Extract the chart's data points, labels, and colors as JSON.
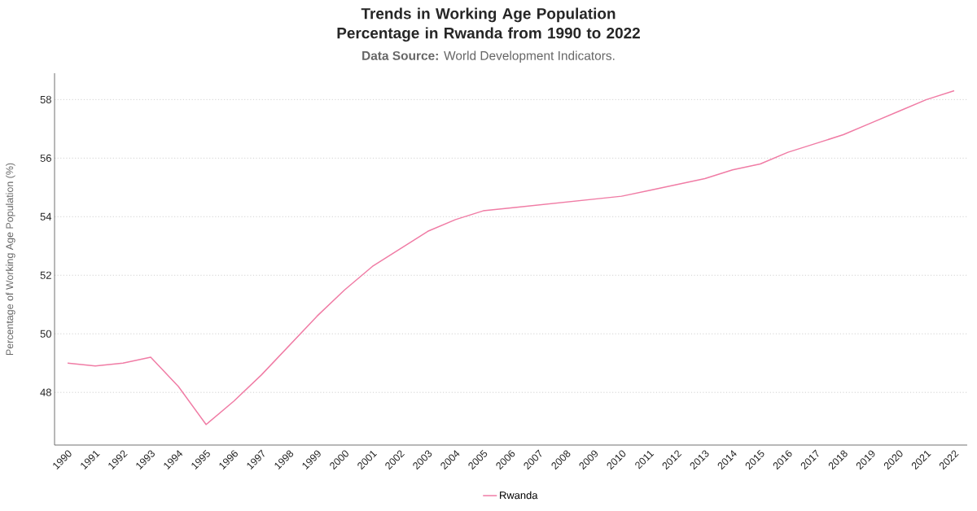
{
  "chart_data": {
    "type": "line",
    "title": "Trends in Working Age Population Percentage in Rwanda from 1990 to 2022",
    "subtitle": "**Data Source:** World Development Indicators.",
    "ylabel": "Percentage of Working Age Population (%)",
    "categories": [
      "1990",
      "1991",
      "1992",
      "1993",
      "1994",
      "1995",
      "1996",
      "1997",
      "1998",
      "1999",
      "2000",
      "2001",
      "2002",
      "2003",
      "2004",
      "2005",
      "2006",
      "2007",
      "2008",
      "2009",
      "2010",
      "2011",
      "2012",
      "2013",
      "2014",
      "2015",
      "2016",
      "2017",
      "2018",
      "2019",
      "2020",
      "2021",
      "2022"
    ],
    "series": [
      {
        "name": "Rwanda",
        "color": "#f07ca5",
        "values": [
          49.0,
          48.9,
          49.0,
          49.2,
          48.2,
          46.9,
          47.7,
          48.6,
          49.6,
          50.6,
          51.5,
          52.3,
          52.9,
          53.5,
          53.9,
          54.2,
          54.3,
          54.4,
          54.5,
          54.6,
          54.7,
          54.9,
          55.1,
          55.3,
          55.6,
          55.8,
          56.2,
          56.5,
          56.8,
          57.2,
          57.6,
          58.0,
          58.3
        ]
      }
    ],
    "ylim": [
      46.2,
      58.9
    ],
    "yticks": [
      48,
      50,
      52,
      54,
      56,
      58
    ],
    "grid": "y",
    "legend": "bottom",
    "marker": "none",
    "line_style": "solid"
  }
}
